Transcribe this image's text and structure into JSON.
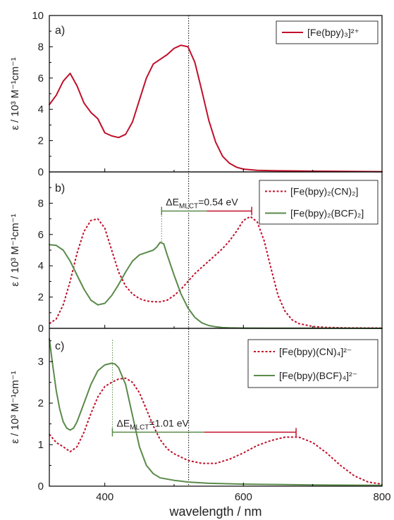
{
  "chart_data": [
    {
      "panel": "a)",
      "type": "line",
      "xlim": [
        320,
        800
      ],
      "ylim": [
        0,
        10
      ],
      "yticks": [
        0,
        2,
        4,
        6,
        8,
        10
      ],
      "ylabel": "ε / 10³ M⁻¹cm⁻¹",
      "legend_position": "top-right",
      "series": [
        {
          "name": "[Fe(bpy)₃]²⁺",
          "style": "solid",
          "color": "#c0102a",
          "x": [
            320,
            330,
            340,
            350,
            360,
            370,
            380,
            390,
            400,
            410,
            420,
            430,
            440,
            450,
            460,
            470,
            480,
            490,
            500,
            510,
            520,
            530,
            540,
            550,
            560,
            570,
            580,
            590,
            600,
            620,
            650,
            700,
            750,
            800
          ],
          "y": [
            4.3,
            4.9,
            5.8,
            6.3,
            5.5,
            4.4,
            3.8,
            3.4,
            2.5,
            2.3,
            2.2,
            2.4,
            3.2,
            4.6,
            6.0,
            6.9,
            7.2,
            7.5,
            7.9,
            8.1,
            8.0,
            7.0,
            5.2,
            3.3,
            1.9,
            1.0,
            0.55,
            0.3,
            0.18,
            0.1,
            0.07,
            0.05,
            0.03,
            0.02
          ]
        }
      ]
    },
    {
      "panel": "b)",
      "type": "line",
      "xlim": [
        320,
        800
      ],
      "ylim": [
        0,
        10
      ],
      "yticks": [
        0,
        2,
        4,
        6,
        8
      ],
      "ylabel": "ε / 10³ M⁻¹cm⁻¹",
      "legend_position": "top-right",
      "annotation": {
        "text_main": "ΔE",
        "text_sub": "MLCT",
        "text_rest": "=0.54 eV",
        "x_from": 482,
        "x_to": 612,
        "y": 7.5
      },
      "series": [
        {
          "name": "[Fe(bpy)₂(CN)₂]",
          "style": "dotted",
          "color": "#c0102a",
          "x": [
            320,
            330,
            340,
            350,
            360,
            370,
            380,
            390,
            400,
            410,
            420,
            430,
            440,
            450,
            460,
            470,
            480,
            490,
            500,
            510,
            520,
            530,
            540,
            550,
            560,
            570,
            580,
            590,
            600,
            610,
            620,
            630,
            640,
            650,
            660,
            670,
            680,
            700,
            720,
            750,
            800
          ],
          "y": [
            0.3,
            0.6,
            1.5,
            3.0,
            4.8,
            6.2,
            6.9,
            7.0,
            6.4,
            5.0,
            3.6,
            2.7,
            2.2,
            1.9,
            1.75,
            1.7,
            1.7,
            1.8,
            2.1,
            2.5,
            3.0,
            3.5,
            3.9,
            4.3,
            4.7,
            5.1,
            5.6,
            6.2,
            6.9,
            7.15,
            6.8,
            5.6,
            3.8,
            2.1,
            1.1,
            0.55,
            0.3,
            0.12,
            0.06,
            0.03,
            0.02
          ]
        },
        {
          "name": "[Fe(bpy)₂(BCF)₂]",
          "style": "solid",
          "color": "#5a8a4a",
          "x": [
            320,
            330,
            340,
            350,
            360,
            370,
            380,
            390,
            400,
            410,
            420,
            430,
            440,
            450,
            460,
            470,
            475,
            480,
            485,
            490,
            500,
            510,
            520,
            530,
            540,
            550,
            560,
            570,
            580,
            600,
            650,
            700,
            800
          ],
          "y": [
            5.35,
            5.3,
            5.0,
            4.3,
            3.4,
            2.5,
            1.8,
            1.5,
            1.6,
            2.1,
            2.8,
            3.6,
            4.3,
            4.7,
            4.85,
            5.0,
            5.2,
            5.5,
            5.4,
            4.7,
            3.4,
            2.2,
            1.3,
            0.7,
            0.35,
            0.18,
            0.1,
            0.05,
            0.03,
            0.02,
            0.01,
            0.01,
            0.0
          ]
        }
      ]
    },
    {
      "panel": "c)",
      "type": "line",
      "xlim": [
        320,
        800
      ],
      "ylim": [
        0,
        3.8
      ],
      "yticks": [
        0,
        1,
        2,
        3
      ],
      "ylabel": "ε / 10³ M⁻¹cm⁻¹",
      "legend_position": "top-right",
      "annotation": {
        "text_main": "ΔE",
        "text_sub": "MLCT",
        "text_rest": "=1.01 eV",
        "x_from": 411,
        "x_to": 676,
        "y": 1.3
      },
      "series": [
        {
          "name": "[Fe(bpy)(CN)₄]²⁻",
          "style": "dotted",
          "color": "#c0102a",
          "x": [
            320,
            330,
            340,
            350,
            360,
            370,
            380,
            390,
            400,
            410,
            420,
            430,
            440,
            450,
            460,
            470,
            480,
            490,
            500,
            520,
            540,
            560,
            580,
            600,
            620,
            640,
            660,
            680,
            700,
            720,
            740,
            760,
            780,
            800
          ],
          "y": [
            1.25,
            1.05,
            0.95,
            0.83,
            0.95,
            1.3,
            1.75,
            2.15,
            2.4,
            2.5,
            2.58,
            2.6,
            2.5,
            2.25,
            1.85,
            1.45,
            1.12,
            0.9,
            0.78,
            0.62,
            0.55,
            0.55,
            0.65,
            0.8,
            0.98,
            1.1,
            1.18,
            1.18,
            1.05,
            0.8,
            0.5,
            0.25,
            0.1,
            0.05
          ]
        },
        {
          "name": "[Fe(bpy)(BCF)₄]²⁻",
          "style": "solid",
          "color": "#5a8a4a",
          "x": [
            320,
            325,
            330,
            335,
            340,
            345,
            350,
            355,
            360,
            370,
            380,
            390,
            400,
            410,
            415,
            420,
            430,
            440,
            450,
            460,
            470,
            480,
            500,
            520,
            550,
            600,
            650,
            700,
            800
          ],
          "y": [
            3.55,
            2.9,
            2.3,
            1.85,
            1.55,
            1.4,
            1.35,
            1.4,
            1.55,
            2.0,
            2.45,
            2.78,
            2.92,
            2.96,
            2.94,
            2.85,
            2.45,
            1.7,
            0.95,
            0.5,
            0.3,
            0.2,
            0.14,
            0.1,
            0.07,
            0.05,
            0.04,
            0.03,
            0.02
          ]
        }
      ]
    }
  ],
  "shared": {
    "xlabel": "wavelength / nm",
    "xticks": [
      400,
      600,
      800
    ],
    "reference_line_x": 521
  }
}
